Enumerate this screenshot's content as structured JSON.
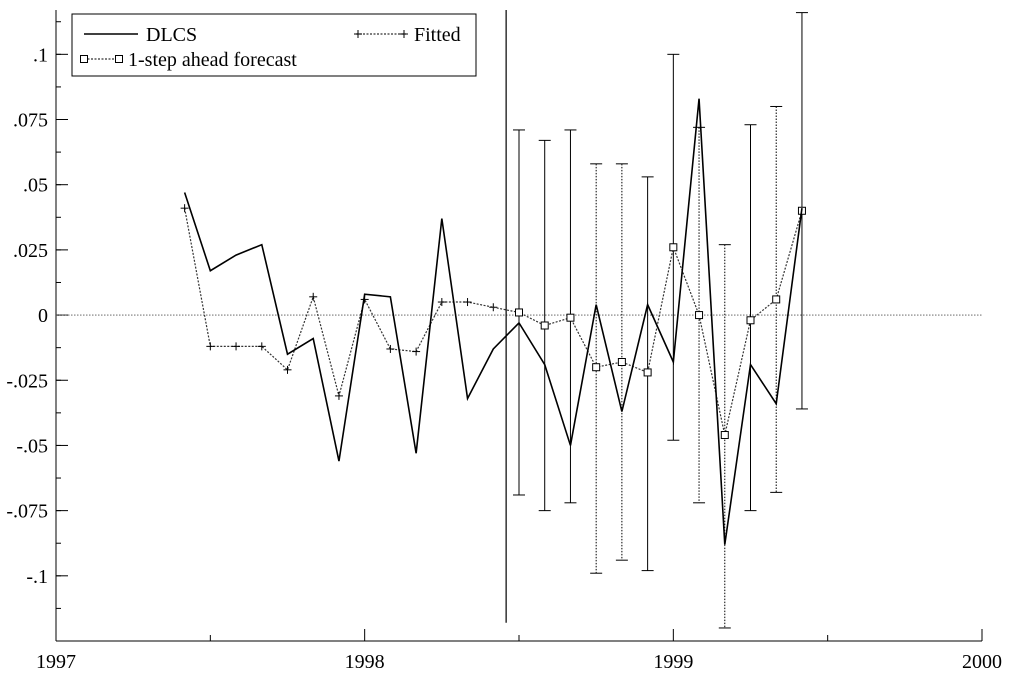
{
  "chart_data": {
    "type": "line",
    "xlim": [
      1997,
      2000
    ],
    "ylim": [
      -0.125,
      0.117
    ],
    "x_ticks": [
      {
        "value": 1997,
        "label": "1997"
      },
      {
        "value": 1998,
        "label": "1998"
      },
      {
        "value": 1999,
        "label": "1999"
      },
      {
        "value": 2000,
        "label": "2000"
      }
    ],
    "y_ticks": [
      {
        "value": 0.1,
        "label": ".1"
      },
      {
        "value": 0.075,
        "label": ".075"
      },
      {
        "value": 0.05,
        "label": ".05"
      },
      {
        "value": 0.025,
        "label": ".025"
      },
      {
        "value": 0,
        "label": "0"
      },
      {
        "value": -0.025,
        "label": "-.025"
      },
      {
        "value": -0.05,
        "label": "-.05"
      },
      {
        "value": -0.075,
        "label": "-.075"
      },
      {
        "value": -0.1,
        "label": "-.1"
      }
    ],
    "legend": [
      "DLCS",
      "Fitted",
      "1-step ahead forecast"
    ],
    "forecast_start": 1998.4583,
    "series": [
      {
        "name": "DLCS",
        "style": "solid",
        "x": [
          1997.4167,
          1997.5,
          1997.5833,
          1997.6667,
          1997.75,
          1997.8333,
          1997.9167,
          1998.0,
          1998.0833,
          1998.1667,
          1998.25,
          1998.3333,
          1998.4167,
          1998.5,
          1998.5833,
          1998.6667,
          1998.75,
          1998.8333,
          1998.9167,
          1999.0,
          1999.0833,
          1999.1667,
          1999.25,
          1999.3333,
          1999.4167
        ],
        "values": [
          0.047,
          0.017,
          0.023,
          0.027,
          -0.015,
          -0.009,
          -0.056,
          0.008,
          0.007,
          -0.053,
          0.037,
          -0.032,
          -0.013,
          -0.003,
          -0.019,
          -0.05,
          0.004,
          -0.037,
          0.004,
          -0.018,
          0.083,
          -0.088,
          -0.019,
          -0.034,
          0.041
        ]
      },
      {
        "name": "Fitted",
        "style": "dotted-plus",
        "x": [
          1997.4167,
          1997.5,
          1997.5833,
          1997.6667,
          1997.75,
          1997.8333,
          1997.9167,
          1998.0,
          1998.0833,
          1998.1667,
          1998.25,
          1998.3333,
          1998.4167
        ],
        "values": [
          0.041,
          -0.012,
          -0.012,
          -0.012,
          -0.021,
          0.007,
          -0.031,
          0.006,
          -0.013,
          -0.014,
          0.005,
          0.005,
          0.003
        ]
      },
      {
        "name": "1-step ahead forecast",
        "style": "dotted-square",
        "x": [
          1998.5,
          1998.5833,
          1998.6667,
          1998.75,
          1998.8333,
          1998.9167,
          1999.0,
          1999.0833,
          1999.1667,
          1999.25,
          1999.3333,
          1999.4167
        ],
        "values": [
          0.001,
          -0.004,
          -0.001,
          -0.02,
          -0.018,
          -0.022,
          0.026,
          0.0,
          -0.046,
          -0.002,
          0.006,
          0.04
        ],
        "lower": [
          -0.069,
          -0.075,
          -0.072,
          -0.099,
          -0.094,
          -0.098,
          -0.048,
          -0.072,
          -0.12,
          -0.075,
          -0.068,
          -0.036
        ],
        "upper": [
          0.071,
          0.067,
          0.071,
          0.058,
          0.058,
          0.053,
          0.1,
          0.072,
          0.027,
          0.073,
          0.08,
          0.116
        ]
      }
    ]
  }
}
